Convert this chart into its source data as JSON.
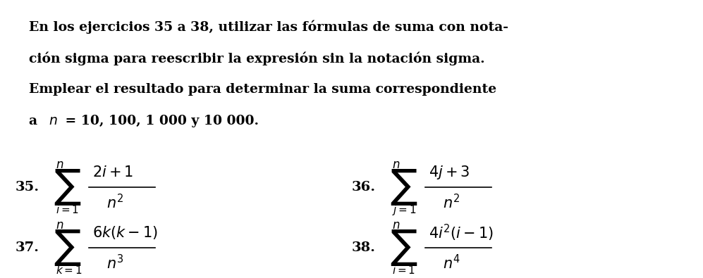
{
  "background_color": "#ffffff",
  "figsize": [
    9.97,
    3.95
  ],
  "dpi": 100,
  "paragraph": "En los ejercicios 35 a 38, utilizar las fórmulas de suma con nota-\nción sigma para reescribir la expresión sin la notación sigma.\nEmplear el resultado para determinar la suma correspondiente\na $n$ = 10, 100, 1 000 y 10 000.",
  "ex35_label": "35.",
  "ex35_numerator": "$2i + 1$",
  "ex35_denominator": "$n^2$",
  "ex35_sum_top": "$n$",
  "ex35_sum_bot": "$i = 1$",
  "ex36_label": "36.",
  "ex36_numerator": "$4j + 3$",
  "ex36_denominator": "$n^2$",
  "ex36_sum_top": "$n$",
  "ex36_sum_bot": "$j = 1$",
  "ex37_label": "37.",
  "ex37_numerator": "$6k(k - 1)$",
  "ex37_denominator": "$n^3$",
  "ex37_sum_top": "$n$",
  "ex37_sum_bot": "$k = 1$",
  "ex38_label": "38.",
  "ex38_numerator": "$4i^2(i - 1)$",
  "ex38_denominator": "$n^4$",
  "ex38_sum_top": "$n$",
  "ex38_sum_bot": "$i = 1$",
  "text_color": "#000000",
  "font_size_para": 13.5,
  "font_size_label": 14,
  "font_size_math": 15
}
